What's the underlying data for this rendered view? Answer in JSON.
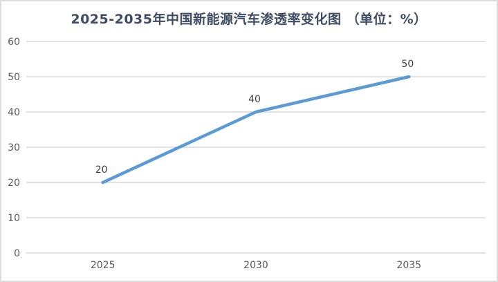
{
  "chart": {
    "title": "2025-2035年中国新能源汽车渗透率变化图 （单位：%）",
    "colors": {
      "line": "#5b9bd5",
      "grid": "#d9d9d9",
      "tick_text": "#595959",
      "data_label_text": "#404040",
      "title_text": "#3f4d63",
      "border": "#dcdcdc",
      "background": "#ffffff"
    }
  },
  "chart_data": {
    "type": "line",
    "title": "2025-2035年中国新能源汽车渗透率变化图 （单位：%）",
    "categories": [
      "2025",
      "2030",
      "2035"
    ],
    "series": [
      {
        "name": "新能源汽车渗透率",
        "values": [
          20,
          40,
          50
        ]
      }
    ],
    "data_labels": [
      "20",
      "40",
      "50"
    ],
    "xlabel": "",
    "ylabel": "",
    "ylim": [
      0,
      60
    ],
    "ytick_step": 10,
    "yticks": [
      "0",
      "10",
      "20",
      "30",
      "40",
      "50",
      "60"
    ],
    "grid": true,
    "legend": "none"
  }
}
